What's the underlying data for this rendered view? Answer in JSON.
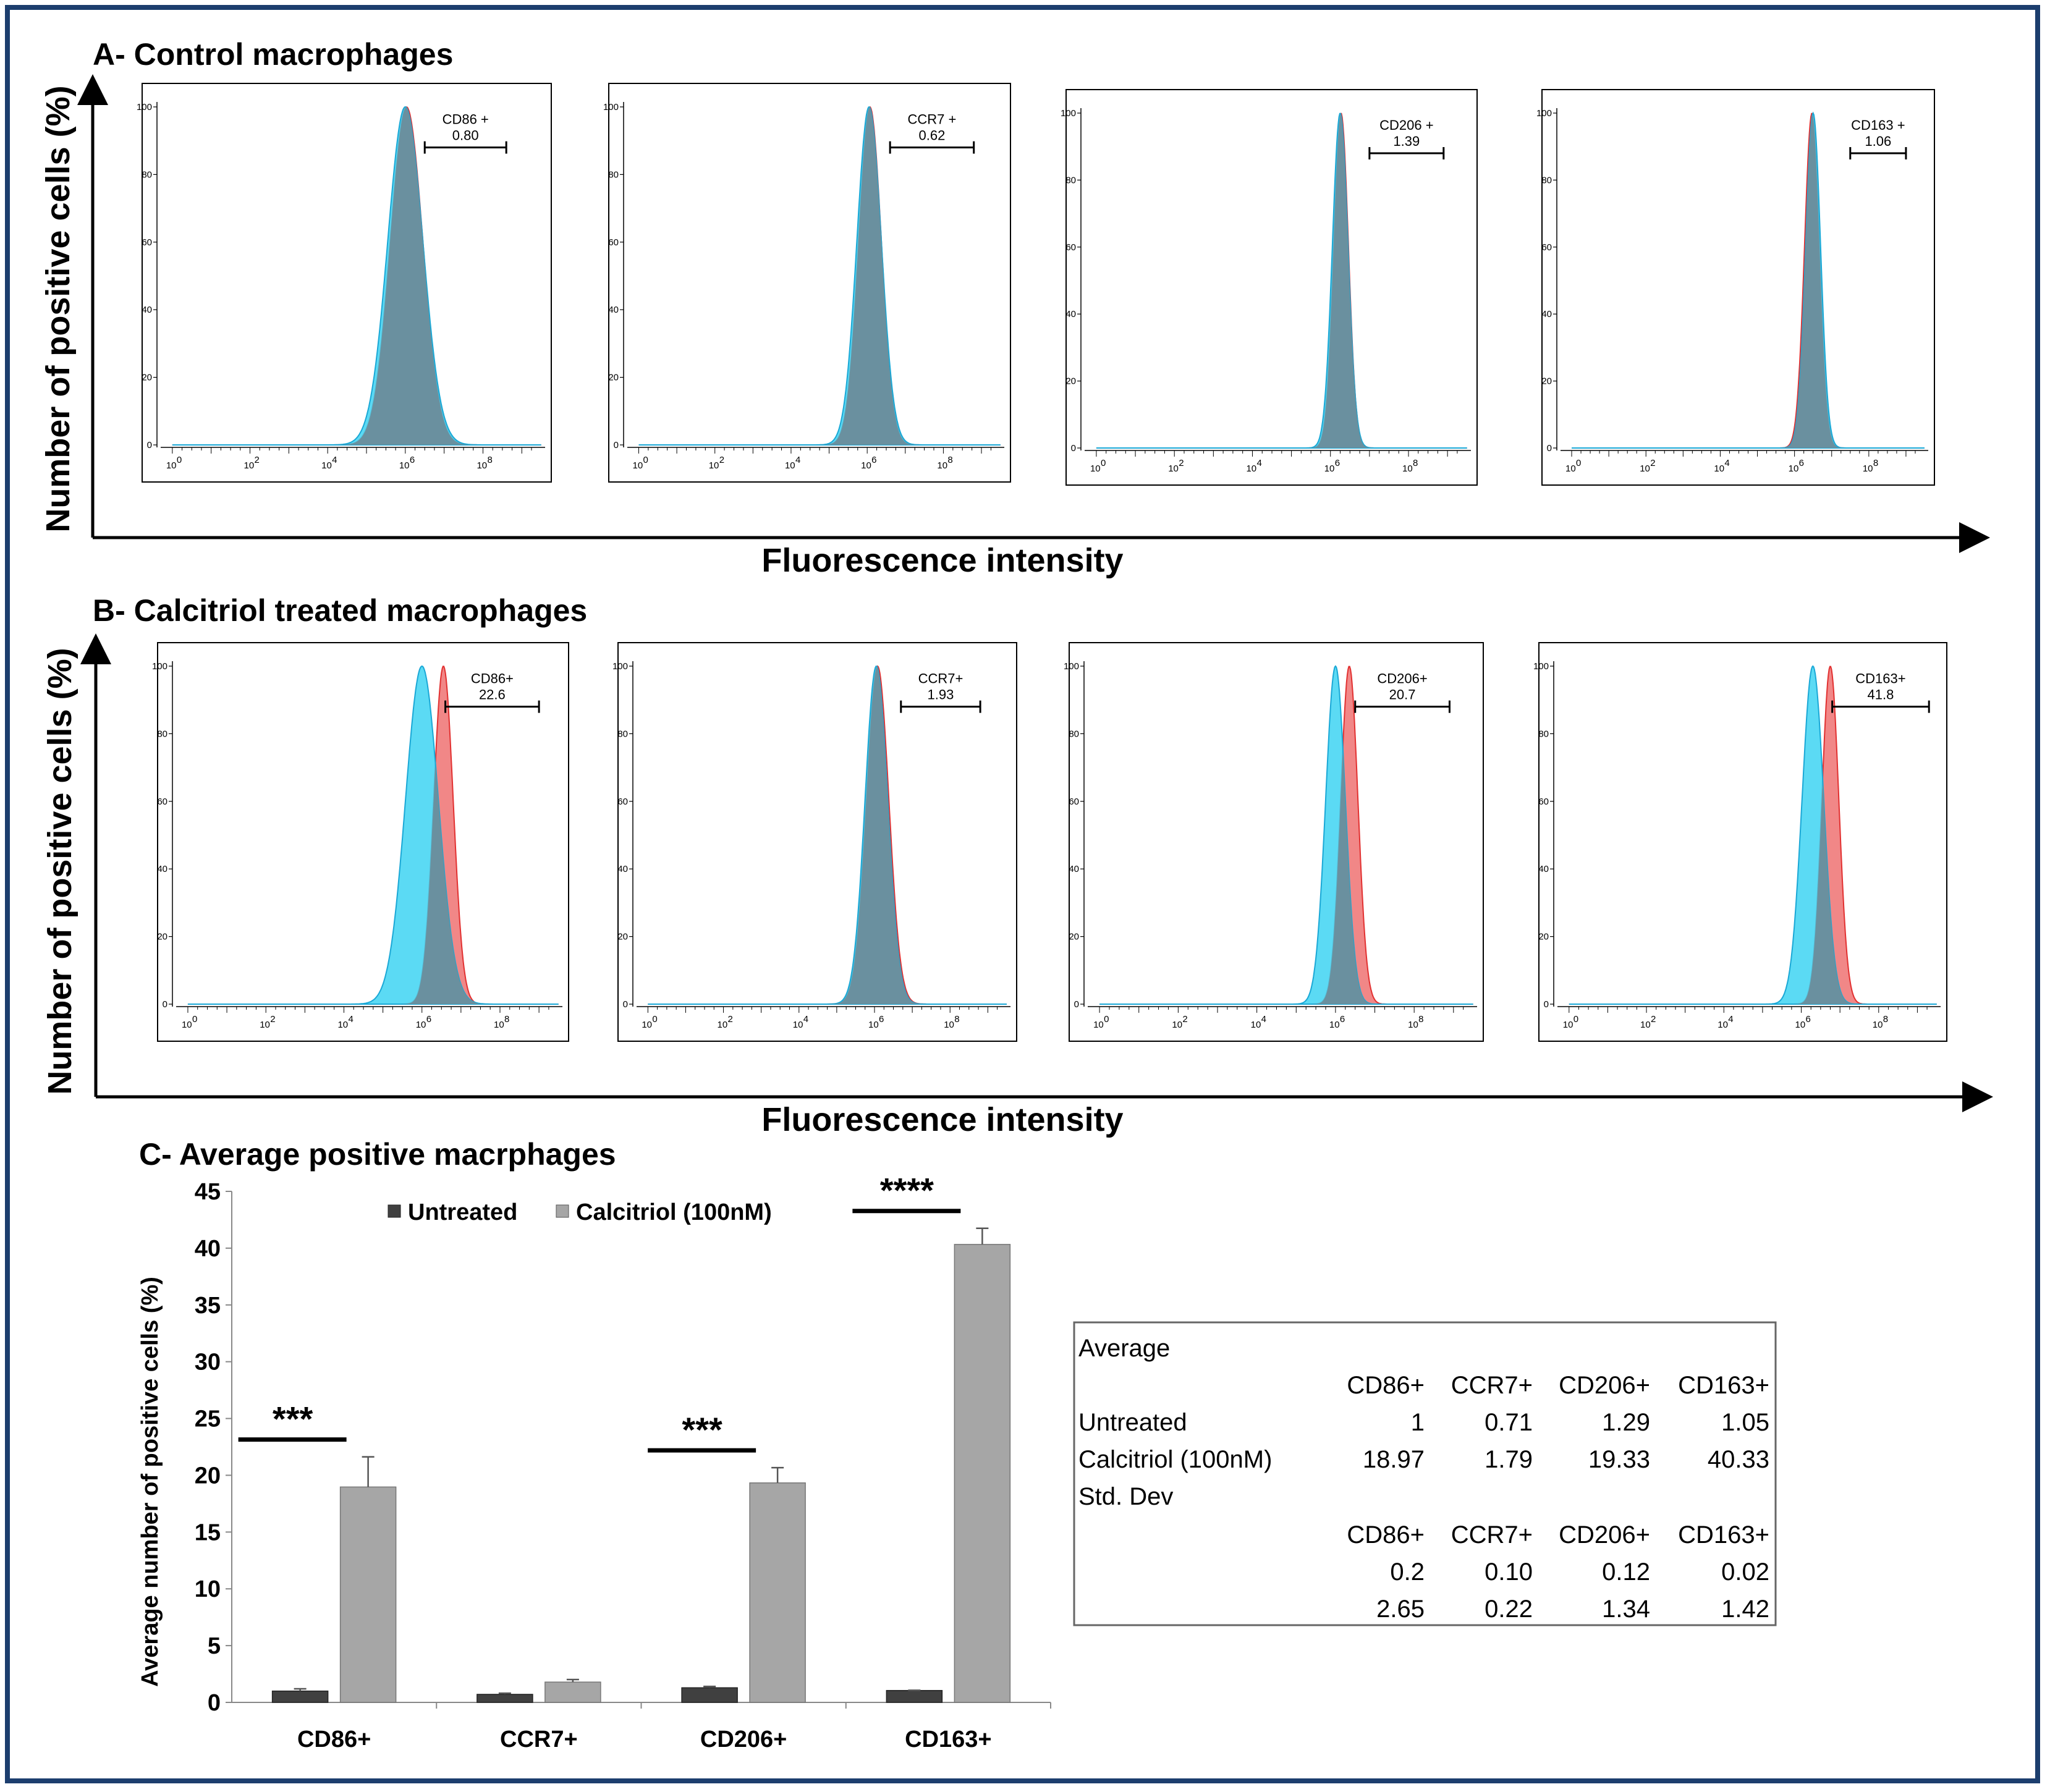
{
  "colors": {
    "frame": "#1c3e6e",
    "blue_fill": "#3ed3f2",
    "red_fill": "#f07a7a",
    "overlap_fill": "#6b8d9b",
    "red_line": "#e23131",
    "blue_line": "#1aa8d6",
    "untreated_bar": "#404040",
    "calcitriol_bar": "#a6a6a6"
  },
  "section_a": {
    "title": "A- Control macrophages",
    "y_axis": "Number of positive cells (%)",
    "x_axis": "Fluorescence intensity",
    "panels": [
      {
        "marker": "CD86 +",
        "value": "0.80"
      },
      {
        "marker": "CCR7 +",
        "value": "0.62"
      },
      {
        "marker": "CD206 +",
        "value": "1.39"
      },
      {
        "marker": "CD163 +",
        "value": "1.06"
      }
    ]
  },
  "section_b": {
    "title": "B- Calcitriol treated macrophages",
    "y_axis": "Number of positive cells (%)",
    "x_axis": "Fluorescence intensity",
    "panels": [
      {
        "marker": "CD86+",
        "value": "22.6"
      },
      {
        "marker": "CCR7+",
        "value": "1.93"
      },
      {
        "marker": "CD206+",
        "value": "20.7"
      },
      {
        "marker": "CD163+",
        "value": "41.8"
      }
    ]
  },
  "histogram_axes": {
    "y_ticks": [
      "0",
      "20",
      "40",
      "60",
      "80",
      "100"
    ],
    "x_ticks": [
      "10",
      "10",
      "10",
      "10",
      "10"
    ],
    "x_exponents": [
      "0",
      "2",
      "4",
      "6",
      "8"
    ]
  },
  "histogram_data": {
    "a": [
      {
        "blue_peak_log": 6.0,
        "blue_width": 0.45,
        "red_peak_log": 6.03,
        "red_width": 0.42,
        "gate_log": [
          6.5,
          8.6
        ]
      },
      {
        "blue_peak_log": 6.05,
        "blue_width": 0.32,
        "red_peak_log": 6.07,
        "red_width": 0.3,
        "gate_log": [
          6.6,
          8.8
        ]
      },
      {
        "blue_peak_log": 6.25,
        "blue_width": 0.2,
        "red_peak_log": 6.27,
        "red_width": 0.19,
        "gate_log": [
          7.0,
          8.9
        ]
      },
      {
        "blue_peak_log": 6.5,
        "blue_width": 0.2,
        "red_peak_log": 6.47,
        "red_width": 0.2,
        "gate_log": [
          7.5,
          9.0
        ]
      }
    ],
    "b": [
      {
        "blue_peak_log": 6.0,
        "blue_width": 0.42,
        "red_peak_log": 6.55,
        "red_width": 0.25,
        "gate_log": [
          6.6,
          9.0
        ]
      },
      {
        "blue_peak_log": 6.05,
        "blue_width": 0.3,
        "red_peak_log": 6.08,
        "red_width": 0.3,
        "gate_log": [
          6.7,
          8.8
        ]
      },
      {
        "blue_peak_log": 6.0,
        "blue_width": 0.25,
        "red_peak_log": 6.35,
        "red_width": 0.22,
        "gate_log": [
          6.5,
          8.9
        ]
      },
      {
        "blue_peak_log": 6.3,
        "blue_width": 0.28,
        "red_peak_log": 6.75,
        "red_width": 0.22,
        "gate_log": [
          6.8,
          9.3
        ]
      }
    ]
  },
  "section_c": {
    "title": "C- Average positive macrphages"
  },
  "chart_data": {
    "type": "bar",
    "title": "C- Average positive macrphages",
    "xlabel": "",
    "ylabel": "Average number of positive cells  (%)",
    "categories": [
      "CD86+",
      "CCR7+",
      "CD206+",
      "CD163+"
    ],
    "ylim": [
      0,
      45
    ],
    "y_ticks": [
      "0",
      "5",
      "10",
      "15",
      "20",
      "25",
      "30",
      "35",
      "40",
      "45"
    ],
    "series": [
      {
        "name": "Untreated",
        "values": [
          1,
          0.71,
          1.29,
          1.05
        ],
        "errors": [
          0.2,
          0.1,
          0.12,
          0.02
        ]
      },
      {
        "name": "Calcitriol (100nM)",
        "values": [
          18.97,
          1.79,
          19.33,
          40.33
        ],
        "errors": [
          2.65,
          0.22,
          1.34,
          1.42
        ]
      }
    ],
    "significance": [
      {
        "category": "CD86+",
        "label": "***"
      },
      {
        "category": "CD206+",
        "label": "***"
      },
      {
        "category": "CD163+",
        "label": "****"
      }
    ],
    "legend": "top-center"
  },
  "table": {
    "average_label": "Average",
    "std_label": "Std. Dev",
    "headers": [
      "CD86+",
      "CCR7+",
      "CD206+",
      "CD163+"
    ],
    "rows_avg": [
      {
        "label": "Untreated",
        "values": [
          "1",
          "0.71",
          "1.29",
          "1.05"
        ]
      },
      {
        "label": "Calcitriol (100nM)",
        "values": [
          "18.97",
          "1.79",
          "19.33",
          "40.33"
        ]
      }
    ],
    "rows_std": [
      {
        "values": [
          "0.2",
          "0.10",
          "0.12",
          "0.02"
        ]
      },
      {
        "values": [
          "2.65",
          "0.22",
          "1.34",
          "1.42"
        ]
      }
    ]
  }
}
